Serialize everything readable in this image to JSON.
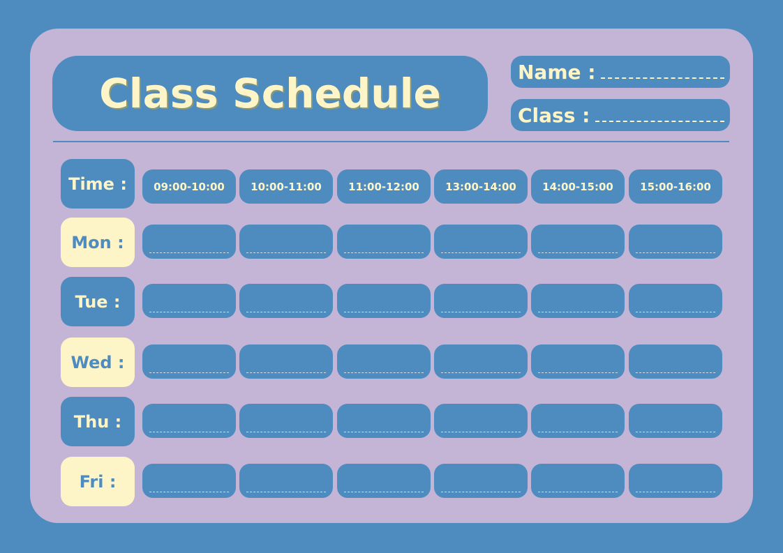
{
  "colors": {
    "background": "#4e8bbf",
    "card": "#c4b4d6",
    "accent": "#fdf5c8"
  },
  "title": "Class Schedule",
  "name_label": "Name :",
  "class_label": "Class :",
  "time_label": "Time :",
  "times": [
    "09:00-10:00",
    "10:00-11:00",
    "11:00-12:00",
    "13:00-14:00",
    "14:00-15:00",
    "15:00-16:00"
  ],
  "days": [
    "Mon :",
    "Tue :",
    "Wed :",
    "Thu :",
    "Fri :"
  ]
}
